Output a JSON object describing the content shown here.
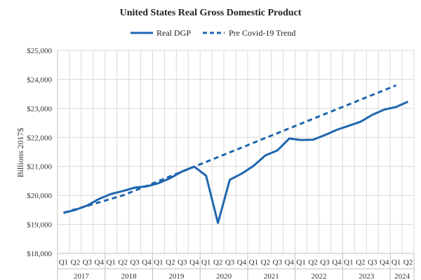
{
  "chart_data": {
    "type": "line",
    "title": "United  States Real Gross Domestic Product",
    "ylabel": "Billions 2017$",
    "xlabel": "",
    "ylim": [
      18000,
      25000
    ],
    "y_ticks": [
      18000,
      19000,
      20000,
      21000,
      22000,
      23000,
      24000,
      25000
    ],
    "y_tick_labels": [
      "$18,000",
      "$19,000",
      "$20,000",
      "$21,000",
      "$22,000",
      "$23,000",
      "$24,000",
      "$25,000"
    ],
    "grid": true,
    "legend_position": "top-center",
    "categories": [
      "Q1",
      "Q2",
      "Q3",
      "Q4",
      "Q1",
      "Q2",
      "Q3",
      "Q4",
      "Q1",
      "Q2",
      "Q3",
      "Q4",
      "Q1",
      "Q2",
      "Q3",
      "Q4",
      "Q1",
      "Q2",
      "Q3",
      "Q4",
      "Q1",
      "Q2",
      "Q3",
      "Q4",
      "Q1",
      "Q2",
      "Q3",
      "Q4",
      "Q1",
      "Q2"
    ],
    "years": [
      {
        "label": "2017",
        "quarters": 4
      },
      {
        "label": "2018",
        "quarters": 4
      },
      {
        "label": "2019",
        "quarters": 4
      },
      {
        "label": "2020",
        "quarters": 4
      },
      {
        "label": "2021",
        "quarters": 4
      },
      {
        "label": "2022",
        "quarters": 4
      },
      {
        "label": "2023",
        "quarters": 4
      },
      {
        "label": "2024",
        "quarters": 2
      }
    ],
    "series": [
      {
        "name": "Real DGP",
        "style": "solid",
        "color": "#1f66b0",
        "values": [
          19400,
          19500,
          19650,
          19880,
          20050,
          20150,
          20270,
          20310,
          20420,
          20600,
          20830,
          20990,
          20680,
          19050,
          20540,
          20750,
          21020,
          21380,
          21550,
          21960,
          21910,
          21920,
          22080,
          22260,
          22400,
          22540,
          22780,
          22960,
          23050,
          23230
        ]
      },
      {
        "name": "Pre Covid-19 Trend",
        "style": "dashed",
        "color": "#1f66b0",
        "values": [
          19400,
          19520,
          19640,
          19760,
          19880,
          20000,
          20165,
          20330,
          20495,
          20660,
          20825,
          20990,
          21155,
          21320,
          21485,
          21650,
          21815,
          21980,
          22145,
          22310,
          22475,
          22640,
          22805,
          22970,
          23135,
          23300,
          23465,
          23630,
          23795,
          null
        ]
      }
    ]
  }
}
